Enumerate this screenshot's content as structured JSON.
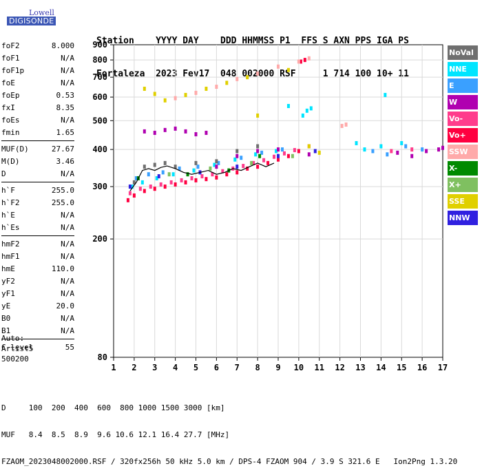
{
  "logo": {
    "line1": "Lowell",
    "line2": "DIGISONDE"
  },
  "header": {
    "line1": "Station    YYYY DAY    DDD HHMMSS P1  FFS S AXN PPS IGA PS",
    "line2": "Fortaleza  2023 Fev17  048 002000 RSF     1 714 100 10+ 11"
  },
  "params": {
    "group1": [
      {
        "name": "foF2",
        "value": "8.000"
      },
      {
        "name": "foF1",
        "value": "N/A"
      },
      {
        "name": "foF1p",
        "value": "N/A"
      },
      {
        "name": "foE",
        "value": "N/A"
      },
      {
        "name": "foEp",
        "value": "0.53"
      },
      {
        "name": "fxI",
        "value": "8.35"
      },
      {
        "name": "foEs",
        "value": "N/A"
      },
      {
        "name": "fmin",
        "value": "1.65"
      }
    ],
    "group2": [
      {
        "name": "MUF(D)",
        "value": "27.67"
      },
      {
        "name": "M(D)",
        "value": "3.46"
      },
      {
        "name": "D",
        "value": "N/A"
      }
    ],
    "group3": [
      {
        "name": "h`F",
        "value": "255.0"
      },
      {
        "name": "h`F2",
        "value": "255.0"
      },
      {
        "name": "h`E",
        "value": "N/A"
      },
      {
        "name": "h`Es",
        "value": "N/A"
      }
    ],
    "group4": [
      {
        "name": "hmF2",
        "value": "N/A"
      },
      {
        "name": "hmF1",
        "value": "N/A"
      },
      {
        "name": "hmE",
        "value": "110.0"
      },
      {
        "name": "yF2",
        "value": "N/A"
      },
      {
        "name": "yF1",
        "value": "N/A"
      },
      {
        "name": "yE",
        "value": "20.0"
      },
      {
        "name": "B0",
        "value": "N/A"
      },
      {
        "name": "B1",
        "value": "N/A"
      }
    ],
    "group5": [
      {
        "name": "C-level",
        "value": "55"
      }
    ]
  },
  "auto": {
    "line1": "Auto:",
    "line2": "Artist5",
    "line3": "500200"
  },
  "legend": [
    {
      "label": "NoVal",
      "color": "#6f6f6f"
    },
    {
      "label": "NNE",
      "color": "#00e5ff"
    },
    {
      "label": "E",
      "color": "#3aa0ff"
    },
    {
      "label": "W",
      "color": "#b000b0"
    },
    {
      "label": "Vo-",
      "color": "#ff3c8c"
    },
    {
      "label": "Vo+",
      "color": "#ff0040"
    },
    {
      "label": "SSW",
      "color": "#ffaaaa"
    },
    {
      "label": "X-",
      "color": "#008a00"
    },
    {
      "label": "X+",
      "color": "#7fc060"
    },
    {
      "label": "SSE",
      "color": "#e0d000"
    },
    {
      "label": "NNW",
      "color": "#3020e0"
    }
  ],
  "footer": {
    "line1": "D     100  200  400  600  800 1000 1500 3000 [km]",
    "line2": "MUF   8.4  8.5  8.9  9.6 10.6 12.1 16.4 27.7 [MHz]",
    "line3": "FZAOM_2023048002000.RSF / 320fx256h 50 kHz 5.0 km / DPS-4 FZAOM 904 / 3.9 S 321.6 E   Ion2Png 1.3.20"
  },
  "chart_data": {
    "type": "scatter",
    "title": "",
    "xlabel": "",
    "ylabel": "",
    "xlim": [
      1,
      17
    ],
    "ylim": [
      80,
      900
    ],
    "xticks": [
      1,
      2,
      3,
      4,
      5,
      6,
      7,
      8,
      9,
      10,
      11,
      12,
      13,
      14,
      15,
      16,
      17
    ],
    "yticks": [
      80,
      200,
      300,
      400,
      500,
      600,
      700,
      800,
      900
    ],
    "yscale": "log",
    "grid": true,
    "legend_position": "right",
    "series": [
      {
        "name": "Vo+",
        "color": "#ff0040",
        "points": [
          [
            1.7,
            270
          ],
          [
            2.0,
            280
          ],
          [
            2.5,
            290
          ],
          [
            3.0,
            295
          ],
          [
            3.5,
            300
          ],
          [
            4.0,
            305
          ],
          [
            4.5,
            310
          ],
          [
            5.0,
            315
          ],
          [
            5.5,
            318
          ],
          [
            6.0,
            322
          ],
          [
            6.5,
            330
          ],
          [
            7.0,
            335
          ],
          [
            7.5,
            345
          ],
          [
            8.0,
            350
          ],
          [
            8.5,
            360
          ],
          [
            9.0,
            370
          ],
          [
            9.5,
            380
          ],
          [
            10.0,
            395
          ],
          [
            10.5,
            410
          ],
          [
            10.1,
            790
          ],
          [
            10.3,
            800
          ]
        ]
      },
      {
        "name": "Vo-",
        "color": "#ff3c8c",
        "points": [
          [
            1.8,
            285
          ],
          [
            2.3,
            295
          ],
          [
            2.8,
            300
          ],
          [
            3.3,
            305
          ],
          [
            3.8,
            310
          ],
          [
            4.3,
            315
          ],
          [
            4.8,
            320
          ],
          [
            5.3,
            325
          ],
          [
            5.8,
            330
          ],
          [
            6.3,
            338
          ],
          [
            6.8,
            345
          ],
          [
            7.3,
            352
          ],
          [
            7.8,
            360
          ],
          [
            8.3,
            368
          ],
          [
            8.8,
            378
          ],
          [
            9.3,
            388
          ],
          [
            9.8,
            398
          ],
          [
            14.5,
            395
          ],
          [
            15.5,
            400
          ]
        ]
      },
      {
        "name": "NNE",
        "color": "#00e5ff",
        "points": [
          [
            1.9,
            300
          ],
          [
            2.4,
            310
          ],
          [
            3.1,
            320
          ],
          [
            3.9,
            330
          ],
          [
            4.9,
            340
          ],
          [
            5.9,
            355
          ],
          [
            6.9,
            370
          ],
          [
            7.9,
            385
          ],
          [
            8.9,
            395
          ],
          [
            10.2,
            520
          ],
          [
            10.4,
            540
          ],
          [
            10.6,
            550
          ],
          [
            12.8,
            420
          ],
          [
            13.2,
            400
          ],
          [
            14.0,
            410
          ],
          [
            14.2,
            610
          ],
          [
            15.0,
            420
          ],
          [
            9.5,
            560
          ]
        ]
      },
      {
        "name": "E",
        "color": "#3aa0ff",
        "points": [
          [
            2.1,
            320
          ],
          [
            2.7,
            330
          ],
          [
            3.4,
            335
          ],
          [
            4.2,
            345
          ],
          [
            5.1,
            350
          ],
          [
            6.1,
            360
          ],
          [
            7.2,
            375
          ],
          [
            8.2,
            390
          ],
          [
            9.2,
            400
          ],
          [
            13.6,
            395
          ],
          [
            14.3,
            385
          ],
          [
            15.2,
            410
          ],
          [
            16.0,
            400
          ]
        ]
      },
      {
        "name": "W",
        "color": "#b000b0",
        "points": [
          [
            2.5,
            460
          ],
          [
            3.0,
            455
          ],
          [
            3.5,
            465
          ],
          [
            4.0,
            470
          ],
          [
            4.5,
            460
          ],
          [
            5.0,
            450
          ],
          [
            5.5,
            455
          ],
          [
            6.0,
            350
          ],
          [
            7.0,
            380
          ],
          [
            8.0,
            395
          ],
          [
            9.0,
            400
          ],
          [
            10.5,
            385
          ],
          [
            14.8,
            390
          ],
          [
            15.5,
            380
          ],
          [
            16.2,
            395
          ],
          [
            16.8,
            400
          ],
          [
            17.0,
            405
          ]
        ]
      },
      {
        "name": "SSW",
        "color": "#ffaaaa",
        "points": [
          [
            4.0,
            595
          ],
          [
            5.0,
            620
          ],
          [
            6.0,
            650
          ],
          [
            7.0,
            690
          ],
          [
            8.0,
            720
          ],
          [
            9.0,
            760
          ],
          [
            10.0,
            790
          ],
          [
            10.5,
            810
          ],
          [
            12.3,
            485
          ],
          [
            12.1,
            480
          ]
        ]
      },
      {
        "name": "SSE",
        "color": "#e0d000",
        "points": [
          [
            2.5,
            640
          ],
          [
            3.0,
            615
          ],
          [
            3.5,
            585
          ],
          [
            4.5,
            610
          ],
          [
            5.5,
            640
          ],
          [
            6.5,
            670
          ],
          [
            7.5,
            700
          ],
          [
            9.5,
            740
          ],
          [
            10.5,
            410
          ],
          [
            11.0,
            390
          ],
          [
            8.0,
            520
          ]
        ]
      },
      {
        "name": "X-",
        "color": "#008a00",
        "points": [
          [
            2.2,
            320
          ],
          [
            4.6,
            330
          ],
          [
            6.6,
            340
          ],
          [
            8.1,
            380
          ]
        ]
      },
      {
        "name": "X+",
        "color": "#7fc060",
        "points": [
          [
            3.7,
            330
          ],
          [
            5.7,
            345
          ],
          [
            7.7,
            360
          ],
          [
            9.7,
            380
          ]
        ]
      },
      {
        "name": "NNW",
        "color": "#3020e0",
        "points": [
          [
            1.8,
            300
          ],
          [
            3.2,
            325
          ],
          [
            5.2,
            335
          ],
          [
            7.0,
            350
          ],
          [
            9.0,
            380
          ],
          [
            10.8,
            395
          ]
        ]
      },
      {
        "name": "NoVal",
        "color": "#6f6f6f",
        "points": [
          [
            2.0,
            310
          ],
          [
            2.5,
            350
          ],
          [
            3.0,
            355
          ],
          [
            3.5,
            360
          ],
          [
            4.0,
            350
          ],
          [
            5.0,
            360
          ],
          [
            6.0,
            365
          ],
          [
            7.0,
            395
          ],
          [
            8.0,
            410
          ]
        ]
      }
    ],
    "trace": {
      "color": "#000000",
      "points": [
        [
          1.8,
          290
        ],
        [
          2.1,
          310
        ],
        [
          2.4,
          340
        ],
        [
          2.7,
          345
        ],
        [
          3.0,
          340
        ],
        [
          3.3,
          348
        ],
        [
          3.6,
          352
        ],
        [
          4.0,
          345
        ],
        [
          4.4,
          335
        ],
        [
          4.8,
          330
        ],
        [
          5.2,
          335
        ],
        [
          5.6,
          340
        ],
        [
          6.0,
          330
        ],
        [
          6.4,
          335
        ],
        [
          6.8,
          345
        ],
        [
          7.2,
          340
        ],
        [
          7.6,
          350
        ],
        [
          8.0,
          360
        ],
        [
          8.4,
          350
        ],
        [
          8.8,
          360
        ]
      ]
    }
  }
}
